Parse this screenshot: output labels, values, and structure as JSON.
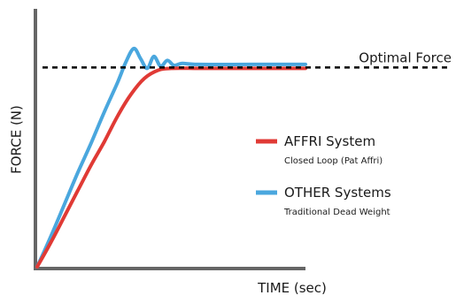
{
  "chart_data": {
    "type": "line",
    "xlabel": "TIME (sec)",
    "ylabel": "FORCE (N)",
    "xlim": [
      0,
      10
    ],
    "ylim": [
      0,
      1.3
    ],
    "grid": false,
    "legend_placement": "right",
    "reference_line": {
      "label": "Optimal Force",
      "y": 1.0,
      "style": "dashed",
      "color": "#000000"
    },
    "series": [
      {
        "name": "AFFRI System",
        "subtitle": "Closed Loop (Pat Affri)",
        "color": "#e03a35",
        "points": [
          [
            0,
            0
          ],
          [
            0.5,
            0.12
          ],
          [
            1,
            0.25
          ],
          [
            1.5,
            0.38
          ],
          [
            2,
            0.51
          ],
          [
            2.5,
            0.63
          ],
          [
            3,
            0.76
          ],
          [
            3.5,
            0.87
          ],
          [
            4,
            0.95
          ],
          [
            4.5,
            0.99
          ],
          [
            5,
            1.0
          ],
          [
            6,
            1.0
          ],
          [
            7,
            1.0
          ],
          [
            8,
            1.0
          ],
          [
            10,
            1.0
          ]
        ]
      },
      {
        "name": "OTHER Systems",
        "subtitle": "Traditional Dead Weight",
        "color": "#4aa7de",
        "points": [
          [
            0,
            0
          ],
          [
            0.5,
            0.15
          ],
          [
            1,
            0.31
          ],
          [
            1.5,
            0.47
          ],
          [
            2,
            0.62
          ],
          [
            2.5,
            0.78
          ],
          [
            3,
            0.93
          ],
          [
            3.3,
            1.03
          ],
          [
            3.6,
            1.1
          ],
          [
            3.85,
            1.05
          ],
          [
            4.1,
            1.0
          ],
          [
            4.35,
            1.06
          ],
          [
            4.6,
            1.01
          ],
          [
            4.85,
            1.04
          ],
          [
            5.1,
            1.015
          ],
          [
            5.4,
            1.025
          ],
          [
            6,
            1.02
          ],
          [
            8,
            1.02
          ],
          [
            10,
            1.02
          ]
        ]
      }
    ]
  }
}
